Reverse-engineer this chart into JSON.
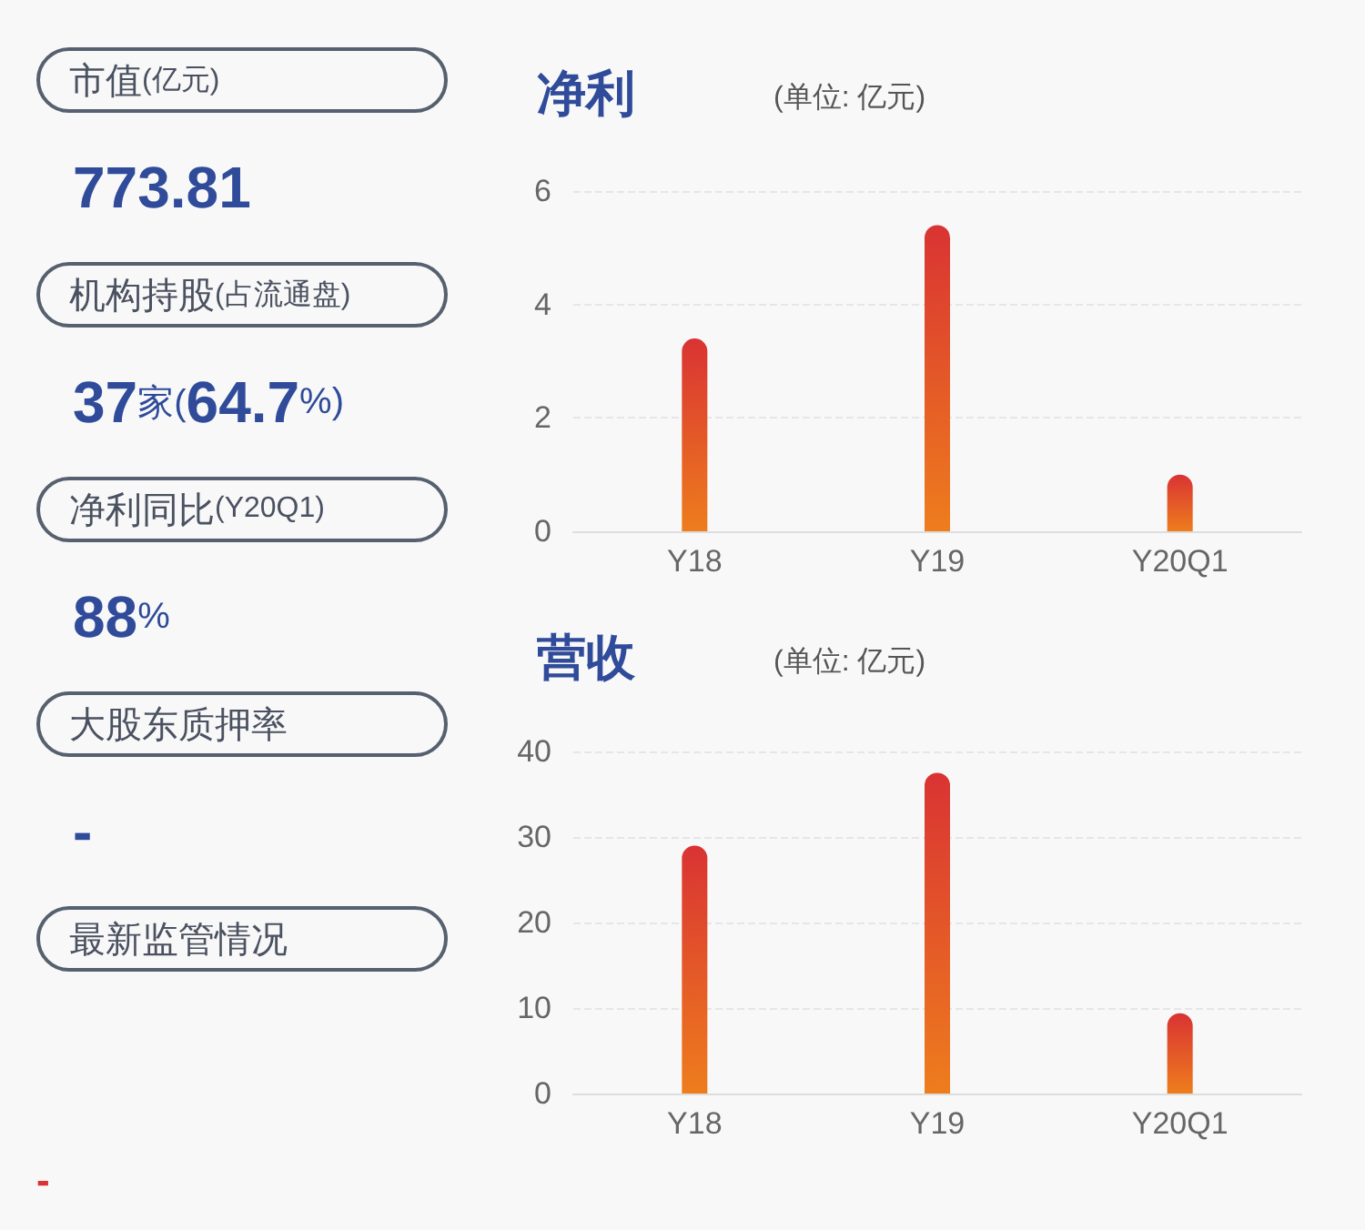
{
  "chart_data": [
    {
      "type": "other",
      "annotations": [
        "市值(亿元)",
        "773.81",
        "机构持股(占流通盘)",
        "37家(64.7%)",
        "净利同比(Y20Q1)",
        "88%",
        "大股东质押率",
        "-",
        "最新监管情况",
        "-"
      ]
    },
    {
      "type": "bar",
      "title": "净利",
      "subtitle": "(单位: 亿元)",
      "categories": [
        "Y18",
        "Y19",
        "Y20Q1"
      ],
      "values": [
        3.4,
        5.4,
        1.0
      ],
      "color": "#d93333",
      "ylim": [
        0,
        6
      ],
      "yticks": [
        0,
        2,
        4,
        6
      ],
      "grid": "y"
    },
    {
      "type": "bar",
      "title": "营收",
      "subtitle": "(单位: 亿元)",
      "categories": [
        "Y18",
        "Y19",
        "Y20Q1"
      ],
      "values": [
        29,
        37.5,
        9.4
      ],
      "color": "#d93333",
      "ylim": [
        0,
        40
      ],
      "yticks": [
        0,
        10,
        20,
        30,
        40
      ],
      "grid": "y"
    }
  ]
}
